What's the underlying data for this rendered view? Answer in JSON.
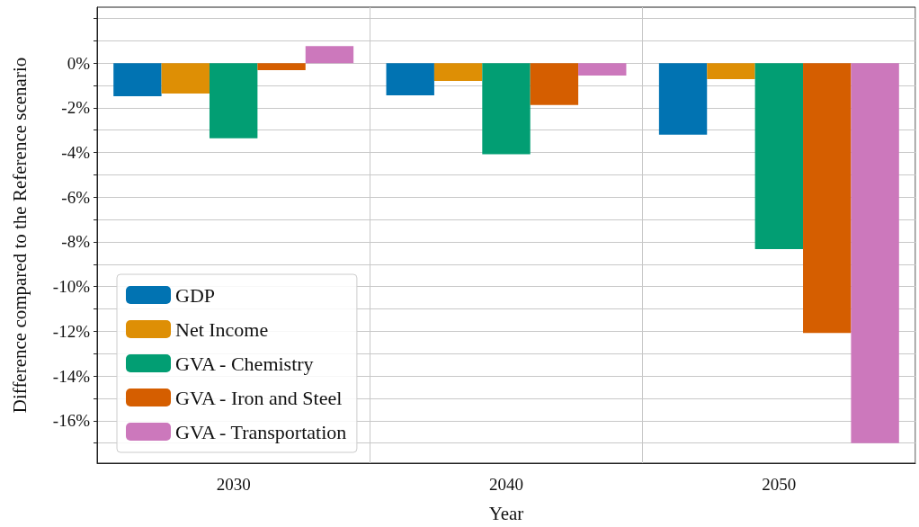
{
  "chart_data": {
    "type": "bar",
    "xlabel": "Year",
    "ylabel": "Difference compared to the Reference scenario",
    "categories": [
      "2030",
      "2040",
      "2050"
    ],
    "series": [
      {
        "name": "GDP",
        "color": "#0173b2",
        "values": [
          -1.48,
          -1.44,
          -3.2
        ]
      },
      {
        "name": "Net Income",
        "color": "#de8f05",
        "values": [
          -1.36,
          -0.8,
          -0.72
        ]
      },
      {
        "name": "GVA - Chemistry",
        "color": "#029e73",
        "values": [
          -3.36,
          -4.08,
          -8.32
        ]
      },
      {
        "name": "GVA - Iron and Steel",
        "color": "#d55e00",
        "values": [
          -0.32,
          -1.88,
          -12.08
        ]
      },
      {
        "name": "GVA - Transportation",
        "color": "#cc78bc",
        "values": [
          0.76,
          -0.56,
          -17.0
        ]
      }
    ],
    "ylim": [
      -17.9,
      2.5
    ],
    "yticks": [
      {
        "value": -17,
        "label": null
      },
      {
        "value": -16,
        "label": "-16%"
      },
      {
        "value": -15,
        "label": null
      },
      {
        "value": -14,
        "label": "-14%"
      },
      {
        "value": -13,
        "label": null
      },
      {
        "value": -12,
        "label": "-12%"
      },
      {
        "value": -11,
        "label": null
      },
      {
        "value": -10,
        "label": "-10%"
      },
      {
        "value": -9,
        "label": null
      },
      {
        "value": -8,
        "label": "-8%"
      },
      {
        "value": -7,
        "label": null
      },
      {
        "value": -6,
        "label": "-6%"
      },
      {
        "value": -5,
        "label": null
      },
      {
        "value": -4,
        "label": "-4%"
      },
      {
        "value": -3,
        "label": null
      },
      {
        "value": -2,
        "label": "-2%"
      },
      {
        "value": -1,
        "label": null
      },
      {
        "value": 0,
        "label": "0%"
      },
      {
        "value": 1,
        "label": null
      },
      {
        "value": 2,
        "label": null
      }
    ],
    "grid": true,
    "legend": "bottom left"
  }
}
